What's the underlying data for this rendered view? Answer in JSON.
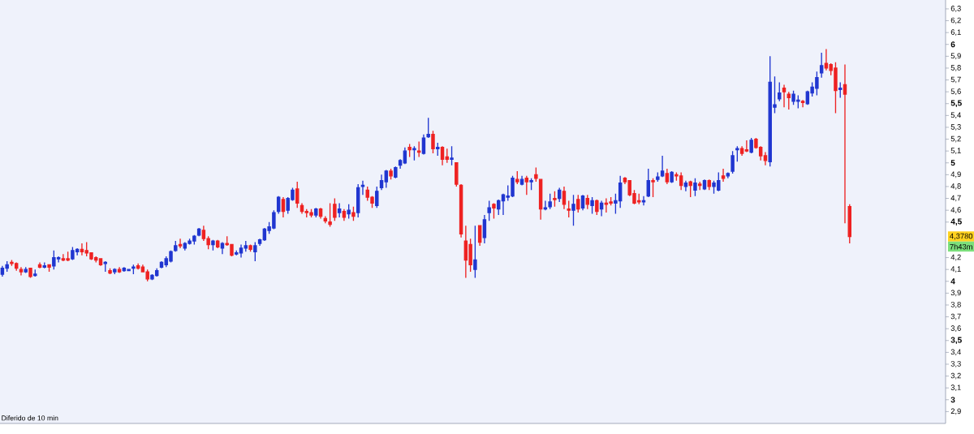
{
  "chart_data": {
    "type": "candlestick",
    "categories": [
      null,
      null,
      null,
      null,
      null,
      null,
      null,
      null,
      null,
      null,
      null,
      null,
      null,
      null,
      null,
      null,
      null,
      null,
      null,
      null,
      null,
      null,
      null,
      null,
      null,
      null,
      null,
      null,
      null,
      null,
      null,
      null,
      null,
      null,
      null,
      null,
      null,
      null,
      null,
      null,
      null,
      null,
      null,
      null,
      null,
      null,
      null,
      null,
      null,
      null,
      null,
      null,
      null,
      null,
      null,
      null,
      null,
      null,
      null,
      null,
      null,
      null,
      null,
      null,
      null,
      null,
      null,
      null,
      null,
      null,
      null,
      null,
      null,
      null,
      null,
      null,
      null,
      null,
      null,
      null,
      null,
      null,
      null,
      null,
      null,
      null,
      null,
      null,
      null,
      null,
      null,
      null,
      null,
      null,
      null,
      null,
      null,
      null,
      null,
      null,
      null,
      null,
      null,
      null,
      null,
      null,
      null,
      null,
      null,
      null,
      null,
      null,
      null,
      null,
      null,
      null,
      null,
      null,
      null,
      null,
      null,
      null,
      null,
      null,
      null,
      null,
      null,
      null,
      null,
      null,
      null,
      null,
      null,
      null,
      null,
      null,
      null,
      null,
      null,
      null,
      null,
      null,
      null,
      null,
      null,
      null,
      null,
      null,
      null,
      null,
      null,
      null,
      null,
      null,
      null,
      null,
      null,
      null,
      null,
      null,
      null,
      null,
      null,
      null,
      null,
      null,
      null,
      null,
      null,
      null,
      null,
      null,
      null,
      null,
      null,
      null,
      null,
      null,
      null,
      null,
      null,
      null,
      null,
      null,
      null,
      null,
      null,
      null,
      null,
      null,
      null,
      null,
      null,
      null,
      null,
      null,
      null,
      null,
      null,
      null,
      null,
      null
    ],
    "ohlc": [
      [
        4.06,
        4.13,
        4.04,
        4.11
      ],
      [
        4.11,
        4.17,
        4.08,
        4.14
      ],
      [
        4.16,
        4.18,
        4.13,
        4.15
      ],
      [
        4.15,
        4.16,
        4.09,
        4.11
      ],
      [
        4.1,
        4.12,
        4.05,
        4.08
      ],
      [
        4.08,
        4.12,
        4.07,
        4.1
      ],
      [
        4.11,
        4.11,
        4.03,
        4.04
      ],
      [
        4.05,
        4.1,
        4.04,
        4.06
      ],
      [
        4.14,
        4.16,
        4.11,
        4.12
      ],
      [
        4.12,
        4.16,
        4.11,
        4.13
      ],
      [
        4.14,
        4.14,
        4.08,
        4.12
      ],
      [
        4.13,
        4.26,
        4.1,
        4.2
      ],
      [
        4.19,
        4.21,
        4.16,
        4.2
      ],
      [
        4.19,
        4.23,
        4.17,
        4.18
      ],
      [
        4.19,
        4.25,
        4.17,
        4.18
      ],
      [
        4.19,
        4.29,
        4.18,
        4.26
      ],
      [
        4.25,
        4.28,
        4.22,
        4.27
      ],
      [
        4.27,
        4.32,
        4.22,
        4.25
      ],
      [
        4.26,
        4.33,
        4.21,
        4.24
      ],
      [
        4.24,
        4.24,
        4.18,
        4.19
      ],
      [
        4.2,
        4.21,
        4.16,
        4.18
      ],
      [
        4.19,
        4.19,
        4.13,
        4.14
      ],
      [
        4.15,
        4.17,
        4.08,
        4.16
      ],
      [
        4.09,
        4.11,
        4.06,
        4.07
      ],
      [
        4.08,
        4.11,
        4.06,
        4.1
      ],
      [
        4.1,
        4.12,
        4.07,
        4.08
      ],
      [
        4.09,
        4.12,
        4.08,
        4.11
      ],
      [
        4.09,
        4.1,
        4.09,
        4.1
      ],
      [
        4.11,
        4.14,
        4.06,
        4.12
      ],
      [
        4.13,
        4.15,
        4.1,
        4.11
      ],
      [
        4.12,
        4.14,
        4.08,
        4.08
      ],
      [
        4.08,
        4.1,
        4.0,
        4.02
      ],
      [
        4.02,
        4.06,
        4.01,
        4.05
      ],
      [
        4.05,
        4.11,
        4.04,
        4.09
      ],
      [
        4.12,
        4.17,
        4.11,
        4.16
      ],
      [
        4.14,
        4.21,
        4.12,
        4.19
      ],
      [
        4.17,
        4.26,
        4.16,
        4.25
      ],
      [
        4.26,
        4.34,
        4.25,
        4.3
      ],
      [
        4.31,
        4.36,
        4.28,
        4.3
      ],
      [
        4.28,
        4.33,
        4.26,
        4.32
      ],
      [
        4.32,
        4.36,
        4.31,
        4.34
      ],
      [
        4.34,
        4.39,
        4.31,
        4.38
      ],
      [
        4.39,
        4.45,
        4.38,
        4.44
      ],
      [
        4.43,
        4.47,
        4.34,
        4.36
      ],
      [
        4.36,
        4.38,
        4.27,
        4.31
      ],
      [
        4.31,
        4.35,
        4.26,
        4.34
      ],
      [
        4.34,
        4.35,
        4.28,
        4.29
      ],
      [
        4.28,
        4.33,
        4.23,
        4.32
      ],
      [
        4.32,
        4.38,
        4.3,
        4.31
      ],
      [
        4.31,
        4.31,
        4.21,
        4.22
      ],
      [
        4.23,
        4.26,
        4.22,
        4.24
      ],
      [
        4.24,
        4.31,
        4.2,
        4.28
      ],
      [
        4.28,
        4.34,
        4.25,
        4.3
      ],
      [
        4.3,
        4.31,
        4.25,
        4.27
      ],
      [
        4.25,
        4.33,
        4.17,
        4.3
      ],
      [
        4.32,
        4.36,
        4.3,
        4.35
      ],
      [
        4.35,
        4.45,
        4.34,
        4.44
      ],
      [
        4.43,
        4.5,
        4.4,
        4.46
      ],
      [
        4.45,
        4.6,
        4.44,
        4.58
      ],
      [
        4.59,
        4.72,
        4.57,
        4.71
      ],
      [
        4.69,
        4.71,
        4.54,
        4.59
      ],
      [
        4.6,
        4.71,
        4.57,
        4.7
      ],
      [
        4.69,
        4.79,
        4.68,
        4.77
      ],
      [
        4.78,
        4.84,
        4.62,
        4.66
      ],
      [
        4.64,
        4.66,
        4.57,
        4.59
      ],
      [
        4.59,
        4.61,
        4.54,
        4.58
      ],
      [
        4.58,
        4.61,
        4.54,
        4.56
      ],
      [
        4.56,
        4.62,
        4.54,
        4.61
      ],
      [
        4.61,
        4.62,
        4.53,
        4.55
      ],
      [
        4.53,
        4.55,
        4.49,
        4.51
      ],
      [
        4.5,
        4.66,
        4.46,
        4.48
      ],
      [
        4.65,
        4.7,
        4.51,
        4.54
      ],
      [
        4.58,
        4.66,
        4.54,
        4.61
      ],
      [
        4.59,
        4.61,
        4.51,
        4.54
      ],
      [
        4.57,
        4.65,
        4.53,
        4.6
      ],
      [
        4.58,
        4.63,
        4.51,
        4.55
      ],
      [
        4.58,
        4.82,
        4.54,
        4.79
      ],
      [
        4.8,
        4.85,
        4.73,
        4.81
      ],
      [
        4.77,
        4.8,
        4.68,
        4.71
      ],
      [
        4.71,
        4.72,
        4.62,
        4.66
      ],
      [
        4.64,
        4.8,
        4.62,
        4.76
      ],
      [
        4.79,
        4.9,
        4.77,
        4.85
      ],
      [
        4.84,
        4.94,
        4.79,
        4.93
      ],
      [
        4.93,
        4.95,
        4.86,
        4.89
      ],
      [
        4.88,
        4.97,
        4.87,
        4.96
      ],
      [
        4.98,
        5.03,
        4.95,
        5.02
      ],
      [
        5.0,
        5.13,
        4.99,
        5.1
      ],
      [
        5.13,
        5.16,
        5.05,
        5.11
      ],
      [
        5.11,
        5.14,
        5.02,
        5.12
      ],
      [
        5.1,
        5.18,
        5.05,
        5.09
      ],
      [
        5.08,
        5.24,
        5.07,
        5.21
      ],
      [
        5.22,
        5.38,
        5.21,
        5.24
      ],
      [
        5.24,
        5.27,
        5.08,
        5.12
      ],
      [
        5.12,
        5.17,
        5.06,
        5.13
      ],
      [
        5.13,
        5.14,
        4.98,
        5.03
      ],
      [
        5.05,
        5.12,
        5.0,
        5.03
      ],
      [
        5.03,
        5.14,
        4.98,
        5.04
      ],
      [
        5.0,
        5.0,
        4.8,
        4.82
      ],
      [
        4.81,
        4.82,
        4.37,
        4.4
      ],
      [
        4.34,
        4.47,
        4.03,
        4.18
      ],
      [
        4.31,
        4.36,
        4.08,
        4.14
      ],
      [
        4.1,
        4.47,
        4.03,
        4.18
      ],
      [
        4.47,
        4.47,
        4.3,
        4.33
      ],
      [
        4.37,
        4.56,
        4.32,
        4.52
      ],
      [
        4.58,
        4.68,
        4.51,
        4.62
      ],
      [
        4.65,
        4.66,
        4.53,
        4.62
      ],
      [
        4.61,
        4.69,
        4.56,
        4.68
      ],
      [
        4.68,
        4.74,
        4.56,
        4.73
      ],
      [
        4.71,
        4.81,
        4.68,
        4.72
      ],
      [
        4.72,
        4.89,
        4.71,
        4.87
      ],
      [
        4.86,
        4.93,
        4.82,
        4.84
      ],
      [
        4.82,
        4.89,
        4.81,
        4.86
      ],
      [
        4.87,
        4.89,
        4.73,
        4.84
      ],
      [
        4.84,
        4.87,
        4.77,
        4.85
      ],
      [
        4.9,
        4.96,
        4.84,
        4.87
      ],
      [
        4.86,
        4.86,
        4.52,
        4.61
      ],
      [
        4.61,
        4.68,
        4.6,
        4.62
      ],
      [
        4.63,
        4.74,
        4.61,
        4.67
      ],
      [
        4.7,
        4.76,
        4.63,
        4.69
      ],
      [
        4.7,
        4.79,
        4.67,
        4.77
      ],
      [
        4.76,
        4.8,
        4.61,
        4.65
      ],
      [
        4.61,
        4.68,
        4.54,
        4.6
      ],
      [
        4.6,
        4.73,
        4.47,
        4.65
      ],
      [
        4.69,
        4.73,
        4.58,
        4.61
      ],
      [
        4.62,
        4.73,
        4.6,
        4.72
      ],
      [
        4.7,
        4.73,
        4.61,
        4.65
      ],
      [
        4.64,
        4.71,
        4.57,
        4.68
      ],
      [
        4.68,
        4.69,
        4.56,
        4.59
      ],
      [
        4.61,
        4.68,
        4.55,
        4.66
      ],
      [
        4.66,
        4.7,
        4.58,
        4.65
      ],
      [
        4.67,
        4.71,
        4.64,
        4.66
      ],
      [
        4.66,
        4.74,
        4.57,
        4.68
      ],
      [
        4.68,
        4.89,
        4.62,
        4.83
      ],
      [
        4.87,
        4.88,
        4.82,
        4.84
      ],
      [
        4.85,
        4.85,
        4.72,
        4.73
      ],
      [
        4.74,
        4.77,
        4.65,
        4.66
      ],
      [
        4.68,
        4.74,
        4.65,
        4.67
      ],
      [
        4.67,
        4.72,
        4.64,
        4.68
      ],
      [
        4.72,
        4.95,
        4.71,
        4.85
      ],
      [
        4.85,
        4.87,
        4.71,
        4.84
      ],
      [
        4.86,
        4.92,
        4.84,
        4.88
      ],
      [
        4.89,
        5.06,
        4.88,
        4.93
      ],
      [
        4.91,
        4.95,
        4.82,
        4.84
      ],
      [
        4.84,
        4.93,
        4.83,
        4.92
      ],
      [
        4.9,
        4.92,
        4.85,
        4.89
      ],
      [
        4.89,
        4.92,
        4.77,
        4.81
      ],
      [
        4.8,
        4.85,
        4.76,
        4.83
      ],
      [
        4.84,
        4.85,
        4.71,
        4.81
      ],
      [
        4.77,
        4.87,
        4.72,
        4.83
      ],
      [
        4.82,
        4.84,
        4.77,
        4.81
      ],
      [
        4.78,
        4.86,
        4.77,
        4.85
      ],
      [
        4.85,
        4.86,
        4.77,
        4.8
      ],
      [
        4.8,
        4.85,
        4.74,
        4.83
      ],
      [
        4.77,
        4.92,
        4.76,
        4.85
      ],
      [
        4.89,
        4.95,
        4.84,
        4.87
      ],
      [
        4.89,
        4.92,
        4.87,
        4.91
      ],
      [
        4.93,
        5.1,
        4.91,
        5.06
      ],
      [
        5.11,
        5.14,
        5.01,
        5.12
      ],
      [
        5.12,
        5.14,
        5.06,
        5.08
      ],
      [
        5.11,
        5.19,
        5.09,
        5.1
      ],
      [
        5.09,
        5.21,
        5.08,
        5.19
      ],
      [
        5.2,
        5.21,
        5.12,
        5.13
      ],
      [
        5.13,
        5.14,
        5.02,
        5.06
      ],
      [
        5.06,
        5.09,
        4.98,
        5.02
      ],
      [
        5.01,
        5.9,
        4.97,
        5.68
      ],
      [
        5.47,
        5.73,
        5.42,
        5.49
      ],
      [
        5.54,
        5.68,
        5.52,
        5.59
      ],
      [
        5.63,
        5.66,
        5.47,
        5.6
      ],
      [
        5.58,
        5.6,
        5.45,
        5.55
      ],
      [
        5.52,
        5.61,
        5.49,
        5.58
      ],
      [
        5.52,
        5.57,
        5.46,
        5.53
      ],
      [
        5.52,
        5.53,
        5.47,
        5.51
      ],
      [
        5.5,
        5.61,
        5.49,
        5.6
      ],
      [
        5.59,
        5.68,
        5.56,
        5.64
      ],
      [
        5.63,
        5.77,
        5.57,
        5.72
      ],
      [
        5.76,
        5.93,
        5.72,
        5.82
      ],
      [
        5.84,
        5.96,
        5.78,
        5.8
      ],
      [
        5.83,
        5.84,
        5.74,
        5.78
      ],
      [
        5.8,
        5.85,
        5.42,
        5.61
      ],
      [
        5.62,
        5.68,
        5.55,
        5.63
      ],
      [
        5.66,
        5.83,
        4.49,
        5.58
      ],
      [
        4.63,
        4.65,
        4.32,
        4.378
      ],
      null,
      null,
      null,
      null,
      null,
      null,
      null,
      null,
      null,
      null,
      null,
      null,
      null,
      null,
      null,
      null,
      null,
      null,
      null,
      null
    ],
    "colors": [
      "#2036d0",
      "#2036d0",
      "#ee2222",
      "#ee2222",
      "#ee2222",
      "#2036d0",
      "#ee2222",
      "#2036d0",
      "#ee2222",
      "#2036d0",
      "#ee2222",
      "#2036d0",
      "#2036d0",
      "#ee2222",
      "#ee2222",
      "#2036d0",
      "#2036d0",
      "#ee2222",
      "#ee2222",
      "#ee2222",
      "#ee2222",
      "#ee2222",
      "#2036d0",
      "#ee2222",
      "#2036d0",
      "#ee2222",
      "#2036d0",
      "#2036d0",
      "#2036d0",
      "#ee2222",
      "#ee2222",
      "#ee2222",
      "#2036d0",
      "#2036d0",
      "#2036d0",
      "#2036d0",
      "#2036d0",
      "#2036d0",
      "#ee2222",
      "#2036d0",
      "#2036d0",
      "#2036d0",
      "#2036d0",
      "#ee2222",
      "#ee2222",
      "#2036d0",
      "#ee2222",
      "#2036d0",
      "#ee2222",
      "#ee2222",
      "#2036d0",
      "#2036d0",
      "#2036d0",
      "#ee2222",
      "#2036d0",
      "#2036d0",
      "#2036d0",
      "#2036d0",
      "#2036d0",
      "#2036d0",
      "#ee2222",
      "#2036d0",
      "#2036d0",
      "#ee2222",
      "#ee2222",
      "#ee2222",
      "#ee2222",
      "#2036d0",
      "#ee2222",
      "#ee2222",
      "#ee2222",
      "#ee2222",
      "#2036d0",
      "#ee2222",
      "#2036d0",
      "#ee2222",
      "#2036d0",
      "#2036d0",
      "#ee2222",
      "#ee2222",
      "#2036d0",
      "#2036d0",
      "#2036d0",
      "#ee2222",
      "#2036d0",
      "#2036d0",
      "#2036d0",
      "#ee2222",
      "#2036d0",
      "#ee2222",
      "#2036d0",
      "#2036d0",
      "#ee2222",
      "#2036d0",
      "#ee2222",
      "#ee2222",
      "#2036d0",
      "#ee2222",
      "#ee2222",
      "#ee2222",
      "#ee2222",
      "#2036d0",
      "#ee2222",
      "#2036d0",
      "#2036d0",
      "#ee2222",
      "#2036d0",
      "#2036d0",
      "#2036d0",
      "#2036d0",
      "#ee2222",
      "#2036d0",
      "#ee2222",
      "#2036d0",
      "#ee2222",
      "#ee2222",
      "#2036d0",
      "#2036d0",
      "#ee2222",
      "#2036d0",
      "#ee2222",
      "#ee2222",
      "#2036d0",
      "#ee2222",
      "#2036d0",
      "#ee2222",
      "#2036d0",
      "#ee2222",
      "#2036d0",
      "#ee2222",
      "#ee2222",
      "#2036d0",
      "#2036d0",
      "#ee2222",
      "#ee2222",
      "#ee2222",
      "#ee2222",
      "#2036d0",
      "#2036d0",
      "#ee2222",
      "#2036d0",
      "#2036d0",
      "#ee2222",
      "#2036d0",
      "#ee2222",
      "#ee2222",
      "#2036d0",
      "#ee2222",
      "#2036d0",
      "#ee2222",
      "#2036d0",
      "#ee2222",
      "#2036d0",
      "#2036d0",
      "#ee2222",
      "#2036d0",
      "#2036d0",
      "#2036d0",
      "#ee2222",
      "#ee2222",
      "#2036d0",
      "#ee2222",
      "#ee2222",
      "#ee2222",
      "#2036d0",
      "#2036d0",
      "#2036d0",
      "#ee2222",
      "#ee2222",
      "#2036d0",
      "#2036d0",
      "#ee2222",
      "#2036d0",
      "#2036d0",
      "#2036d0",
      "#2036d0",
      "#ee2222",
      "#ee2222",
      "#ee2222",
      "#2036d0",
      "#ee2222",
      "#ee2222",
      null,
      null,
      null,
      null,
      null,
      null,
      null,
      null,
      null,
      null,
      null,
      null,
      null,
      null,
      null,
      null,
      null,
      null,
      null,
      null
    ],
    "ylim": [
      2.8,
      6.375
    ],
    "yticks": [
      {
        "value": 2.9,
        "label": "2,9"
      },
      3,
      {
        "value": 3.1,
        "label": "3,1"
      },
      {
        "value": 3.2,
        "label": "3,2"
      },
      {
        "value": 3.3,
        "label": "3,3"
      },
      {
        "value": 3.4,
        "label": "3,4"
      },
      {
        "value": 3.5,
        "label": "3,5"
      },
      {
        "value": 3.6,
        "label": "3,6"
      },
      {
        "value": 3.7,
        "label": "3,7"
      },
      {
        "value": 3.8,
        "label": "3,8"
      },
      {
        "value": 3.9,
        "label": "3,9"
      },
      4,
      {
        "value": 4.1,
        "label": "4,1"
      },
      {
        "value": 4.2,
        "label": "4,2"
      },
      {
        "value": 4.5,
        "label": "4,5"
      },
      {
        "value": 4.6,
        "label": "4,6"
      },
      {
        "value": 4.7,
        "label": "4,7"
      },
      {
        "value": 4.8,
        "label": "4,8"
      },
      {
        "value": 4.9,
        "label": "4,9"
      },
      5,
      {
        "value": 5.1,
        "label": "5,1"
      },
      {
        "value": 5.2,
        "label": "5,2"
      },
      {
        "value": 5.3,
        "label": "5,3"
      },
      {
        "value": 5.4,
        "label": "5,4"
      },
      {
        "value": 5.5,
        "label": "5,5"
      },
      {
        "value": 5.6,
        "label": "5,6"
      },
      {
        "value": 5.7,
        "label": "5,7"
      },
      {
        "value": 5.8,
        "label": "5,8"
      },
      {
        "value": 5.9,
        "label": "5,9"
      },
      6,
      {
        "value": 6.1,
        "label": "6,1"
      },
      {
        "value": 6.2,
        "label": "6,2"
      },
      {
        "value": 6.3,
        "label": "6,3"
      }
    ],
    "annotations": [
      "Diferido de 10 min",
      "4,3780",
      "7h43m"
    ]
  }
}
